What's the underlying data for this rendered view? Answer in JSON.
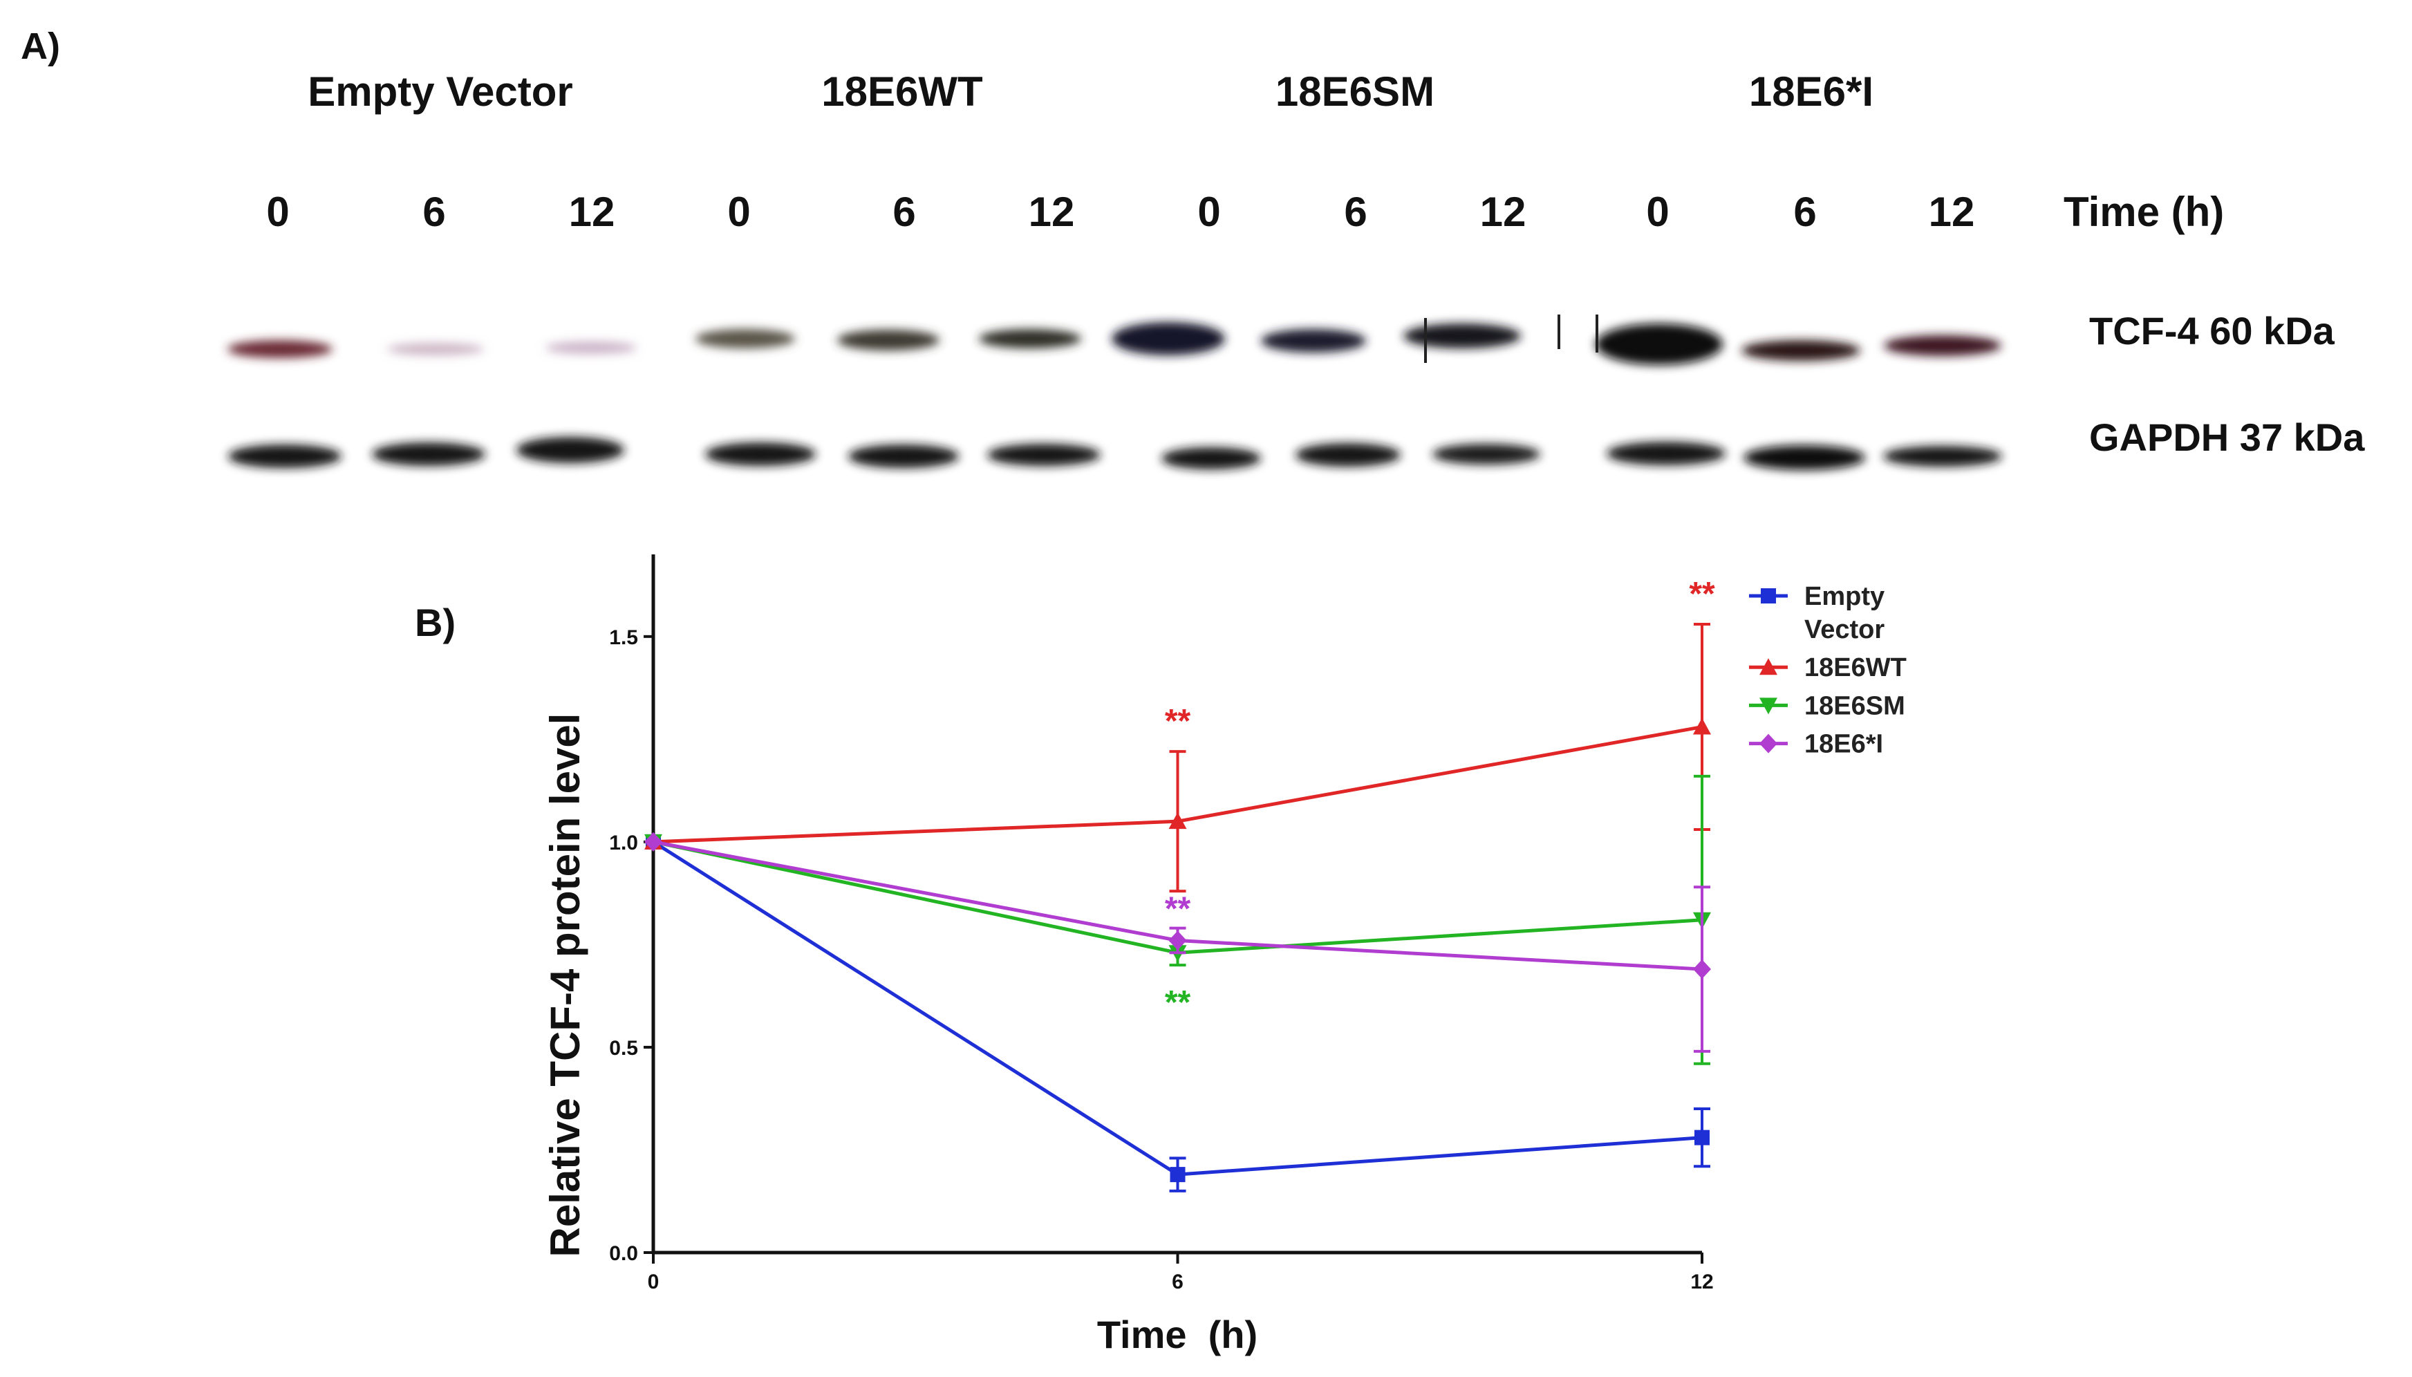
{
  "panel_a": {
    "label": "A)",
    "groups": [
      "Empty Vector",
      "18E6WT",
      "18E6SM",
      "18E6*I"
    ],
    "time_points": [
      "0",
      "6",
      "12"
    ],
    "time_axis_label": "Time (h)",
    "rows": [
      {
        "name": "TCF-4 60 kDa"
      },
      {
        "name": "GAPDH 37 kDa"
      }
    ]
  },
  "panel_b": {
    "label": "B)"
  },
  "chart_data": {
    "type": "line",
    "title": "",
    "xlabel": "Time  (h)",
    "ylabel": "Relative TCF-4 protein level",
    "x": [
      0,
      6,
      12
    ],
    "x_ticks": [
      "0",
      "6",
      "12"
    ],
    "y_ticks": [
      "0.0",
      "0.5",
      "1.0",
      "1.5"
    ],
    "xlim": [
      0,
      12
    ],
    "ylim": [
      0,
      1.7
    ],
    "legend_position": "top-right",
    "series": [
      {
        "name": "Empty Vector",
        "legend_lines": [
          "Empty",
          "Vector"
        ],
        "color": "#1f2fd6",
        "marker": "square",
        "values": [
          1.0,
          0.19,
          0.28
        ],
        "errors": [
          0,
          0.04,
          0.07
        ],
        "significance": [
          "",
          "",
          ""
        ]
      },
      {
        "name": "18E6WT",
        "legend_lines": [
          "18E6WT"
        ],
        "color": "#e02626",
        "marker": "triangle",
        "values": [
          1.0,
          1.05,
          1.28
        ],
        "errors": [
          0,
          0.17,
          0.25
        ],
        "significance": [
          "",
          "**",
          "**"
        ]
      },
      {
        "name": "18E6SM",
        "legend_lines": [
          "18E6SM"
        ],
        "color": "#22b422",
        "marker": "triangle-down",
        "values": [
          1.0,
          0.73,
          0.81
        ],
        "errors": [
          0,
          0.03,
          0.35
        ],
        "significance": [
          "",
          "**",
          ""
        ]
      },
      {
        "name": "18E6*I",
        "legend_lines": [
          "18E6*I"
        ],
        "color": "#b03cd0",
        "marker": "diamond",
        "values": [
          1.0,
          0.76,
          0.69
        ],
        "errors": [
          0,
          0.03,
          0.2
        ],
        "significance": [
          "",
          "**",
          ""
        ]
      }
    ]
  }
}
